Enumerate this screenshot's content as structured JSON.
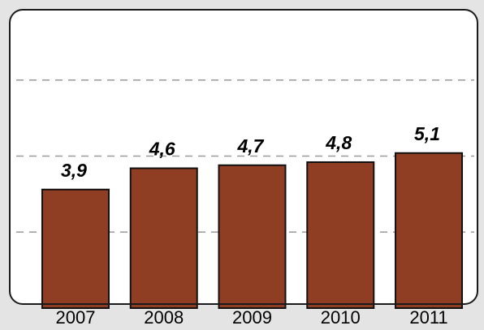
{
  "chart_data": {
    "type": "bar",
    "categories": [
      "2007",
      "2008",
      "2009",
      "2010",
      "2011"
    ],
    "values": [
      3.9,
      4.6,
      4.7,
      4.8,
      5.1
    ],
    "value_labels": [
      "3,9",
      "4,6",
      "4,7",
      "4,8",
      "5,1"
    ],
    "color": "#8f3e23",
    "ylim": [
      0,
      10
    ],
    "yticks": [
      2.5,
      5,
      7.5
    ],
    "grid": true
  }
}
